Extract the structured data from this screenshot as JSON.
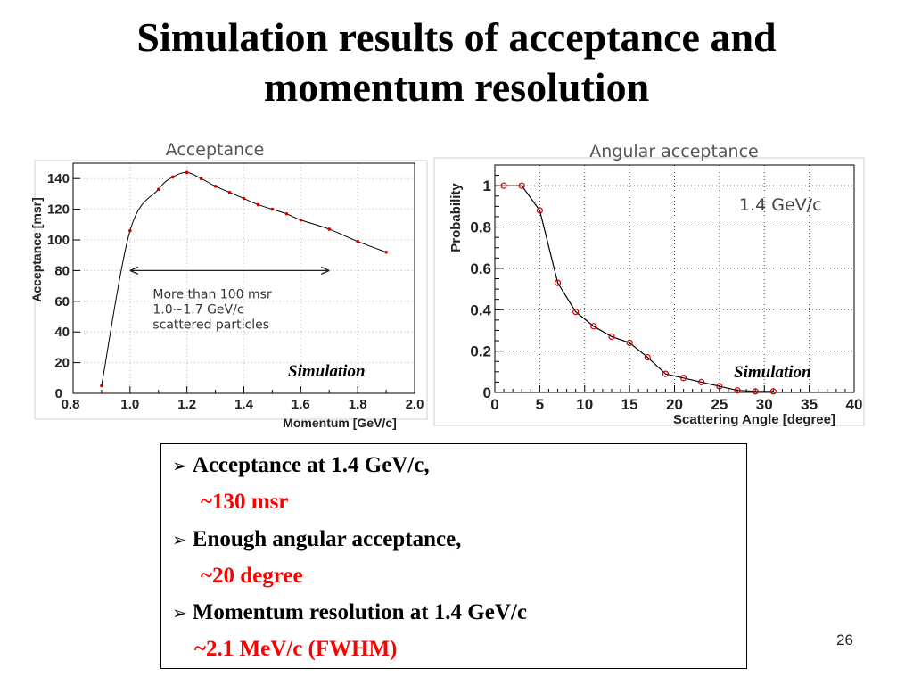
{
  "slide": {
    "title_line1": "Simulation results of acceptance and",
    "title_line2": "momentum resolution",
    "page_number": "26"
  },
  "chart_data": [
    {
      "type": "line",
      "title": "Acceptance",
      "xlabel": "Momentum [GeV/c]",
      "ylabel": "Acceptance [msr]",
      "xlim": [
        0.8,
        2.0
      ],
      "ylim": [
        0,
        150
      ],
      "xticks": [
        "0.8",
        "1.0",
        "1.2",
        "1.4",
        "1.6",
        "1.8",
        "2.0"
      ],
      "yticks": [
        "0",
        "20",
        "40",
        "60",
        "80",
        "100",
        "120",
        "140"
      ],
      "grid": true,
      "x": [
        0.9,
        1.0,
        1.1,
        1.15,
        1.2,
        1.25,
        1.3,
        1.35,
        1.4,
        1.45,
        1.5,
        1.55,
        1.6,
        1.7,
        1.8,
        1.9
      ],
      "values": [
        5,
        106,
        133,
        141,
        144,
        140,
        135,
        131,
        127,
        123,
        120,
        117,
        113,
        107,
        99,
        92
      ],
      "annotation": [
        "More than 100 msr",
        "1.0∼1.7 GeV/c",
        "scattered particles"
      ],
      "annotation_arrow_range": [
        1.0,
        1.7
      ],
      "label": "Simulation",
      "colors": {
        "line": "#000000",
        "marker": "#cc0000"
      }
    },
    {
      "type": "line",
      "title": "Angular acceptance",
      "xlabel": "Scattering Angle [degree]",
      "ylabel": "Probability",
      "xlim": [
        0,
        40
      ],
      "ylim": [
        0,
        1.1
      ],
      "xticks": [
        "0",
        "5",
        "10",
        "15",
        "20",
        "25",
        "30",
        "35",
        "40"
      ],
      "yticks": [
        "0",
        "0.2",
        "0.4",
        "0.6",
        "0.8",
        "1"
      ],
      "grid": true,
      "x": [
        1,
        3,
        5,
        7,
        9,
        11,
        13,
        15,
        17,
        19,
        21,
        23,
        25,
        27,
        29,
        31
      ],
      "values": [
        1.0,
        1.0,
        0.88,
        0.53,
        0.39,
        0.32,
        0.27,
        0.24,
        0.17,
        0.09,
        0.07,
        0.05,
        0.03,
        0.01,
        0.005,
        0.005
      ],
      "annotation": "1.4 GeV/c",
      "label": "Simulation",
      "colors": {
        "line": "#000000",
        "marker": "#cc0000"
      }
    }
  ],
  "summary": {
    "item1": "Acceptance at 1.4 GeV/c,",
    "item1_value": "~130 msr",
    "item2": "Enough angular acceptance,",
    "item2_value": "~20 degree",
    "item3": "Momentum resolution at 1.4 GeV/c",
    "item3_value": "~2.1 MeV/c (FWHM)",
    "bullet": "➢",
    "accent_color": "#ff0000"
  }
}
